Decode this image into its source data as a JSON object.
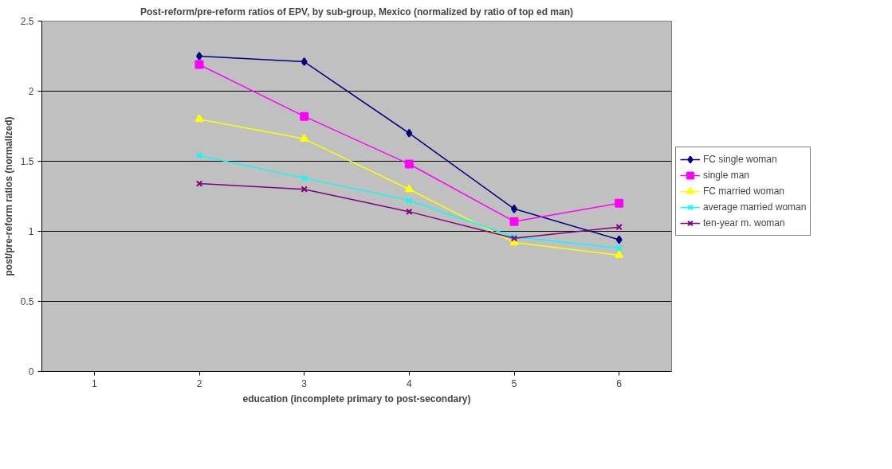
{
  "chart_data": {
    "type": "line",
    "title": "Post-reform/pre-reform ratios of EPV, by sub-group, Mexico (normalized by ratio of top ed man)",
    "xlabel": "education (incomplete primary to post-secondary)",
    "ylabel": "post/pre-reform ratios (normalized)",
    "categories": [
      "1",
      "2",
      "3",
      "4",
      "5",
      "6"
    ],
    "ylim": [
      0,
      2.5
    ],
    "yticks": [
      0,
      0.5,
      1,
      1.5,
      2,
      2.5
    ],
    "grid": "y",
    "legend": "right",
    "series": [
      {
        "name": "FC single woman",
        "color": "#000080",
        "marker": "diamond",
        "values": [
          null,
          2.25,
          2.21,
          1.7,
          1.16,
          0.94
        ]
      },
      {
        "name": "single man",
        "color": "#ff00ff",
        "marker": "square",
        "values": [
          null,
          2.19,
          1.82,
          1.48,
          1.07,
          1.2
        ]
      },
      {
        "name": "FC married woman",
        "color": "#ffff00",
        "marker": "triangle",
        "values": [
          null,
          1.8,
          1.66,
          1.3,
          0.92,
          0.83
        ]
      },
      {
        "name": "average married woman",
        "color": "#00ffff",
        "marker": "cross",
        "values": [
          null,
          1.54,
          1.38,
          1.22,
          0.96,
          0.88
        ]
      },
      {
        "name": "ten-year m. woman",
        "color": "#800080",
        "marker": "cross",
        "values": [
          null,
          1.34,
          1.3,
          1.14,
          0.95,
          1.03
        ]
      }
    ]
  }
}
